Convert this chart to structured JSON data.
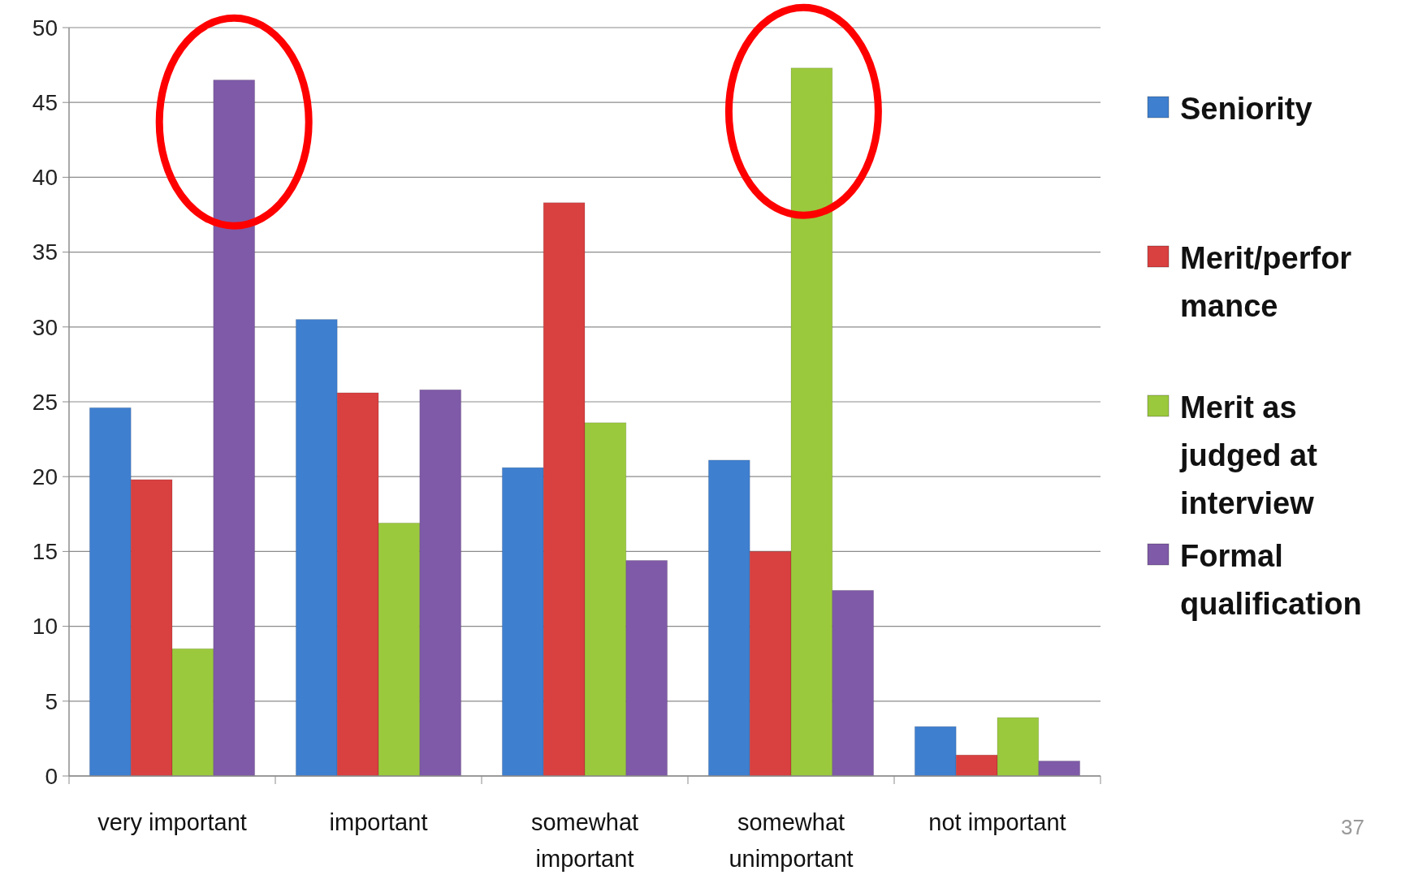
{
  "chart_data": {
    "type": "bar",
    "categories": [
      "very important",
      "important",
      "somewhat important",
      "somewhat unimportant",
      "not important"
    ],
    "series": [
      {
        "name": "Seniority",
        "color": "#3f7fd0",
        "values": [
          24.6,
          30.5,
          20.6,
          21.1,
          3.3
        ]
      },
      {
        "name": "Merit/performance",
        "color": "#d94040",
        "values": [
          19.8,
          25.6,
          38.3,
          15.0,
          1.4
        ]
      },
      {
        "name": "Merit as judged at interview",
        "color": "#9bc93d",
        "values": [
          8.5,
          16.9,
          23.6,
          47.3,
          3.9
        ]
      },
      {
        "name": "Formal qualification",
        "color": "#7f5aa8",
        "values": [
          46.5,
          25.8,
          14.4,
          12.4,
          1.0
        ]
      }
    ],
    "ylim": [
      0,
      50
    ],
    "yticks": [
      0,
      5,
      10,
      15,
      20,
      25,
      30,
      35,
      40,
      45,
      50
    ],
    "grid": "y",
    "legend": "right",
    "annotations": [
      "37"
    ]
  }
}
